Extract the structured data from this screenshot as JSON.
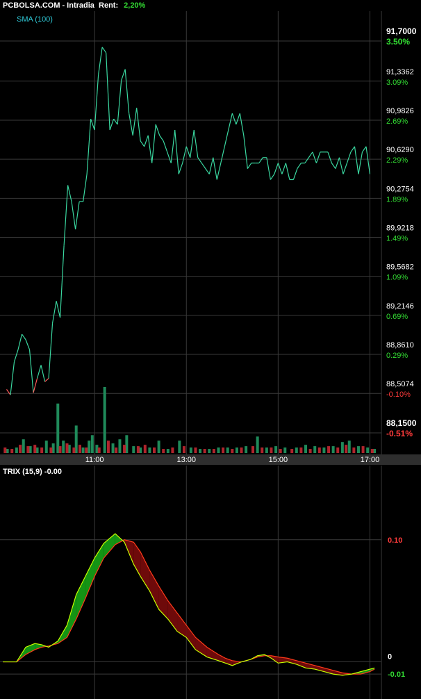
{
  "header": {
    "site": "PCBOLSA.COM",
    "mode": "Intradia",
    "rent_label": "Rent:",
    "rent_value": "2,20%"
  },
  "colors": {
    "background": "#000000",
    "grid": "#3a3a3a",
    "price_up": "#3ad7a0",
    "price_down": "#ff5a5a",
    "vol_up": "#1f8a5a",
    "vol_down": "#b0242c",
    "pct_up": "#33dd33",
    "pct_down": "#ff3b3b",
    "trix_fill_up": "#149414",
    "trix_fill_down": "#6e0a0a",
    "trix_line": "#c6ff00",
    "signal_line": "#ff3a1a",
    "sma_label": "#2fc8d6"
  },
  "chart_data": [
    {
      "type": "line",
      "indicator_label": "SMA (100)",
      "x_ticks": [
        "11:00",
        "13:00",
        "15:00",
        "17:00"
      ],
      "x_range": [
        "09:00",
        "17:15"
      ],
      "ylim": [
        88.15,
        91.7
      ],
      "y_ticks": [
        {
          "value": "91,7000",
          "pct": "3.50%"
        },
        {
          "value": "91,3362",
          "pct": "3.09%"
        },
        {
          "value": "90,9826",
          "pct": "2.69%"
        },
        {
          "value": "90,6290",
          "pct": "2.29%"
        },
        {
          "value": "90,2754",
          "pct": "1.89%"
        },
        {
          "value": "89,9218",
          "pct": "1.49%"
        },
        {
          "value": "89,5682",
          "pct": "1.09%"
        },
        {
          "value": "89,2146",
          "pct": "0.69%"
        },
        {
          "value": "88,8610",
          "pct": "0.29%"
        },
        {
          "value": "88,5074",
          "pct": "-0.10%"
        },
        {
          "value": "88,1500",
          "pct": "-0.51%"
        }
      ],
      "y_tick_numeric": [
        91.7,
        91.3362,
        90.9826,
        90.629,
        90.2754,
        89.9218,
        89.5682,
        89.2146,
        88.861,
        88.5074,
        88.15
      ],
      "grid": true,
      "series": [
        {
          "baseline": 88.59,
          "x": [
            "09:05",
            "09:10",
            "09:15",
            "09:20",
            "09:25",
            "09:30",
            "09:35",
            "09:40",
            "09:45",
            "09:50",
            "09:55",
            "10:00",
            "10:05",
            "10:10",
            "10:15",
            "10:20",
            "10:25",
            "10:30",
            "10:35",
            "10:40",
            "10:45",
            "10:50",
            "10:55",
            "11:00",
            "11:05",
            "11:10",
            "11:15",
            "11:20",
            "11:25",
            "11:30",
            "11:35",
            "11:40",
            "11:45",
            "11:50",
            "11:55",
            "12:00",
            "12:05",
            "12:10",
            "12:15",
            "12:20",
            "12:25",
            "12:30",
            "12:35",
            "12:40",
            "12:45",
            "12:50",
            "12:55",
            "13:00",
            "13:05",
            "13:10",
            "13:15",
            "13:20",
            "13:25",
            "13:30",
            "13:35",
            "13:40",
            "13:45",
            "13:50",
            "13:55",
            "14:00",
            "14:05",
            "14:10",
            "14:15",
            "14:20",
            "14:25",
            "14:30",
            "14:35",
            "14:40",
            "14:45",
            "14:50",
            "14:55",
            "15:00",
            "15:05",
            "15:10",
            "15:15",
            "15:20",
            "15:25",
            "15:30",
            "15:35",
            "15:40",
            "15:45",
            "15:50",
            "15:55",
            "16:00",
            "16:05",
            "16:10",
            "16:15",
            "16:20",
            "16:25",
            "16:30",
            "16:35",
            "16:40",
            "16:45",
            "16:50",
            "16:55",
            "17:00"
          ],
          "values": [
            88.5,
            88.45,
            88.75,
            88.86,
            89.0,
            88.95,
            88.86,
            88.47,
            88.6,
            88.72,
            88.57,
            88.6,
            89.1,
            89.3,
            89.15,
            89.8,
            90.35,
            90.2,
            89.95,
            90.2,
            90.2,
            90.45,
            90.95,
            90.85,
            91.35,
            91.6,
            91.55,
            90.85,
            90.95,
            90.9,
            91.3,
            91.4,
            91.0,
            90.8,
            91.05,
            90.75,
            90.7,
            90.8,
            90.55,
            90.9,
            90.8,
            90.75,
            90.65,
            90.55,
            90.85,
            90.45,
            90.55,
            90.7,
            90.6,
            90.85,
            90.6,
            90.55,
            90.5,
            90.45,
            90.6,
            90.4,
            90.55,
            90.7,
            90.85,
            91.0,
            90.9,
            91.0,
            90.8,
            90.5,
            90.55,
            90.55,
            90.55,
            90.6,
            90.6,
            90.4,
            90.45,
            90.55,
            90.45,
            90.55,
            90.4,
            90.4,
            90.5,
            90.55,
            90.55,
            90.6,
            90.65,
            90.55,
            90.65,
            90.65,
            90.65,
            90.55,
            90.5,
            90.6,
            90.45,
            90.55,
            90.65,
            90.7,
            90.45,
            90.65,
            90.7,
            90.45
          ]
        }
      ],
      "volume": {
        "x_range": [
          "09:00",
          "17:15"
        ],
        "up": [
          [
            9.1,
            3
          ],
          [
            9.3,
            4
          ],
          [
            9.45,
            10
          ],
          [
            9.6,
            5
          ],
          [
            9.75,
            4
          ],
          [
            9.95,
            9
          ],
          [
            10.1,
            7
          ],
          [
            10.2,
            36
          ],
          [
            10.32,
            9
          ],
          [
            10.45,
            6
          ],
          [
            10.6,
            20
          ],
          [
            10.75,
            4
          ],
          [
            10.88,
            9
          ],
          [
            10.95,
            13
          ],
          [
            11.05,
            6
          ],
          [
            11.22,
            48
          ],
          [
            11.4,
            7
          ],
          [
            11.55,
            10
          ],
          [
            11.7,
            13
          ],
          [
            11.85,
            5
          ],
          [
            12.0,
            4
          ],
          [
            12.2,
            4
          ],
          [
            12.4,
            9
          ],
          [
            12.6,
            3
          ],
          [
            12.85,
            9
          ],
          [
            13.1,
            4
          ],
          [
            13.3,
            3
          ],
          [
            13.5,
            3
          ],
          [
            13.7,
            4
          ],
          [
            13.9,
            4
          ],
          [
            14.1,
            4
          ],
          [
            14.3,
            5
          ],
          [
            14.55,
            12
          ],
          [
            14.75,
            4
          ],
          [
            14.95,
            5
          ],
          [
            15.15,
            4
          ],
          [
            15.4,
            4
          ],
          [
            15.6,
            6
          ],
          [
            15.8,
            5
          ],
          [
            16.0,
            4
          ],
          [
            16.2,
            5
          ],
          [
            16.4,
            8
          ],
          [
            16.55,
            9
          ],
          [
            16.75,
            5
          ],
          [
            16.95,
            4
          ],
          [
            17.1,
            3
          ]
        ],
        "down": [
          [
            9.05,
            4
          ],
          [
            9.2,
            3
          ],
          [
            9.38,
            6
          ],
          [
            9.55,
            5
          ],
          [
            9.7,
            6
          ],
          [
            9.85,
            4
          ],
          [
            10.05,
            4
          ],
          [
            10.25,
            5
          ],
          [
            10.4,
            7
          ],
          [
            10.55,
            4
          ],
          [
            10.68,
            6
          ],
          [
            10.82,
            4
          ],
          [
            11.1,
            4
          ],
          [
            11.3,
            9
          ],
          [
            11.47,
            4
          ],
          [
            11.65,
            6
          ],
          [
            11.95,
            5
          ],
          [
            12.1,
            6
          ],
          [
            12.3,
            4
          ],
          [
            12.5,
            3
          ],
          [
            12.7,
            4
          ],
          [
            12.95,
            5
          ],
          [
            13.2,
            4
          ],
          [
            13.4,
            3
          ],
          [
            13.6,
            3
          ],
          [
            13.8,
            4
          ],
          [
            14.0,
            3
          ],
          [
            14.2,
            4
          ],
          [
            14.45,
            5
          ],
          [
            14.65,
            4
          ],
          [
            14.85,
            4
          ],
          [
            15.05,
            3
          ],
          [
            15.3,
            3
          ],
          [
            15.5,
            4
          ],
          [
            15.7,
            3
          ],
          [
            15.9,
            4
          ],
          [
            16.1,
            5
          ],
          [
            16.3,
            4
          ],
          [
            16.48,
            6
          ],
          [
            16.65,
            4
          ],
          [
            16.85,
            5
          ],
          [
            17.05,
            3
          ]
        ]
      }
    },
    {
      "type": "line",
      "indicator_label": "TRIX (15,9) -0.00",
      "x_range": [
        "09:00",
        "17:15"
      ],
      "ylim": [
        -0.027,
        0.138
      ],
      "y_ticks": [
        "0.10",
        "0",
        "-0.01"
      ],
      "y_tick_numeric": [
        0.1,
        0.0,
        -0.01
      ],
      "series": [
        {
          "x": [
            9.0,
            9.3,
            9.5,
            9.7,
            9.85,
            10.0,
            10.2,
            10.4,
            10.6,
            10.8,
            11.0,
            11.2,
            11.45,
            11.65,
            11.85,
            12.0,
            12.2,
            12.4,
            12.6,
            12.8,
            13.0,
            13.2,
            13.45,
            13.7,
            13.85,
            14.0,
            14.2,
            14.4,
            14.55,
            14.7,
            14.85,
            15.0,
            15.2,
            15.4,
            15.6,
            15.8,
            16.0,
            16.2,
            16.4,
            16.6,
            16.8,
            17.0,
            17.1
          ],
          "values": [
            0.0,
            0.0,
            0.012,
            0.015,
            0.014,
            0.012,
            0.017,
            0.03,
            0.055,
            0.07,
            0.085,
            0.097,
            0.105,
            0.098,
            0.08,
            0.07,
            0.058,
            0.043,
            0.035,
            0.025,
            0.02,
            0.01,
            0.004,
            0.001,
            -0.001,
            -0.003,
            0.0,
            0.002,
            0.005,
            0.006,
            0.003,
            -0.001,
            0.0,
            -0.002,
            -0.005,
            -0.006,
            -0.008,
            -0.01,
            -0.011,
            -0.01,
            -0.008,
            -0.006,
            -0.005
          ]
        },
        {
          "x": [
            9.0,
            9.3,
            9.5,
            9.7,
            9.85,
            10.0,
            10.2,
            10.4,
            10.6,
            10.8,
            11.0,
            11.2,
            11.45,
            11.65,
            11.85,
            12.0,
            12.2,
            12.4,
            12.6,
            12.8,
            13.0,
            13.2,
            13.45,
            13.7,
            13.85,
            14.0,
            14.2,
            14.4,
            14.55,
            14.7,
            14.85,
            15.0,
            15.2,
            15.4,
            15.6,
            15.8,
            16.0,
            16.2,
            16.4,
            16.6,
            16.8,
            17.0,
            17.1
          ],
          "values": [
            0.0,
            0.0,
            0.006,
            0.01,
            0.012,
            0.013,
            0.015,
            0.02,
            0.035,
            0.052,
            0.07,
            0.085,
            0.096,
            0.1,
            0.098,
            0.09,
            0.075,
            0.062,
            0.05,
            0.04,
            0.03,
            0.02,
            0.012,
            0.006,
            0.003,
            0.001,
            0.0,
            0.002,
            0.004,
            0.005,
            0.005,
            0.004,
            0.003,
            0.001,
            -0.001,
            -0.003,
            -0.005,
            -0.007,
            -0.009,
            -0.01,
            -0.01,
            -0.008,
            -0.006
          ]
        }
      ]
    }
  ]
}
